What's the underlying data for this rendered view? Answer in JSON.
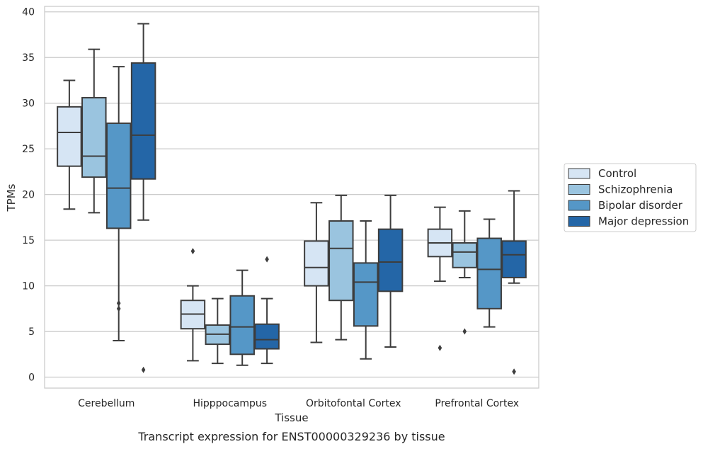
{
  "caption": "Transcript expression for ENST00000329236 by tissue",
  "chart_data": {
    "type": "boxplot",
    "xlabel": "Tissue",
    "ylabel": "TPMs",
    "ylim": [
      -1.2,
      40.6
    ],
    "yticks": [
      0,
      5,
      10,
      15,
      20,
      25,
      30,
      35,
      40
    ],
    "grid": "horizontal",
    "legend_position": "right",
    "categories": [
      "Cerebellum",
      "Hipppocampus",
      "Orbitofontal Cortex",
      "Prefrontal Cortex"
    ],
    "series": [
      {
        "name": "Control",
        "color": "#d6e5f4",
        "boxes": [
          {
            "whisker_low": 18.4,
            "q1": 23.1,
            "median": 26.8,
            "q3": 29.6,
            "whisker_high": 32.5,
            "outliers": []
          },
          {
            "whisker_low": 1.8,
            "q1": 5.3,
            "median": 6.9,
            "q3": 8.4,
            "whisker_high": 10.0,
            "outliers": [
              13.8
            ]
          },
          {
            "whisker_low": 3.8,
            "q1": 10.0,
            "median": 12.0,
            "q3": 14.9,
            "whisker_high": 19.1,
            "outliers": []
          },
          {
            "whisker_low": 10.5,
            "q1": 13.2,
            "median": 14.7,
            "q3": 16.2,
            "whisker_high": 18.6,
            "outliers": [
              3.2
            ]
          }
        ]
      },
      {
        "name": "Schizophrenia",
        "color": "#9ac4df",
        "boxes": [
          {
            "whisker_low": 18.0,
            "q1": 21.9,
            "median": 24.2,
            "q3": 30.6,
            "whisker_high": 35.9,
            "outliers": []
          },
          {
            "whisker_low": 1.5,
            "q1": 3.6,
            "median": 4.7,
            "q3": 5.7,
            "whisker_high": 8.6,
            "outliers": []
          },
          {
            "whisker_low": 4.1,
            "q1": 8.4,
            "median": 14.1,
            "q3": 17.1,
            "whisker_high": 19.9,
            "outliers": []
          },
          {
            "whisker_low": 10.9,
            "q1": 12.0,
            "median": 13.7,
            "q3": 14.7,
            "whisker_high": 18.2,
            "outliers": [
              5.0
            ]
          }
        ]
      },
      {
        "name": "Bipolar disorder",
        "color": "#5597c7",
        "boxes": [
          {
            "whisker_low": 4.0,
            "q1": 16.3,
            "median": 20.7,
            "q3": 27.8,
            "whisker_high": 34.0,
            "outliers": [
              8.1,
              7.5
            ]
          },
          {
            "whisker_low": 1.3,
            "q1": 2.5,
            "median": 5.5,
            "q3": 8.9,
            "whisker_high": 11.7,
            "outliers": []
          },
          {
            "whisker_low": 2.0,
            "q1": 5.6,
            "median": 10.4,
            "q3": 12.5,
            "whisker_high": 17.1,
            "outliers": []
          },
          {
            "whisker_low": 5.5,
            "q1": 7.5,
            "median": 11.8,
            "q3": 15.2,
            "whisker_high": 17.3,
            "outliers": []
          }
        ]
      },
      {
        "name": "Major depression",
        "color": "#2466a7",
        "boxes": [
          {
            "whisker_low": 17.2,
            "q1": 21.7,
            "median": 26.5,
            "q3": 34.4,
            "whisker_high": 38.7,
            "outliers": [
              0.8
            ]
          },
          {
            "whisker_low": 1.5,
            "q1": 3.1,
            "median": 4.1,
            "q3": 5.8,
            "whisker_high": 8.6,
            "outliers": [
              12.9
            ]
          },
          {
            "whisker_low": 3.3,
            "q1": 9.4,
            "median": 12.6,
            "q3": 16.2,
            "whisker_high": 19.9,
            "outliers": []
          },
          {
            "whisker_low": 10.3,
            "q1": 10.9,
            "median": 13.4,
            "q3": 14.9,
            "whisker_high": 20.4,
            "outliers": [
              0.6
            ]
          }
        ]
      }
    ]
  }
}
